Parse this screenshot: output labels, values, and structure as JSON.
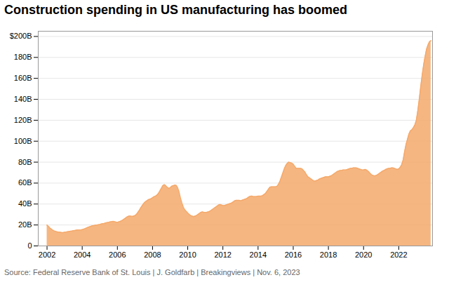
{
  "chart_data": {
    "type": "area",
    "title": "Construction spending in US manufacturing has boomed",
    "caption": "Source: Federal Reserve Bank of St. Louis | J. Goldfarb | Breakingviews | Nov. 6, 2023",
    "color": "#F5A96B",
    "grid": "y",
    "xlim": [
      2001.5,
      2023.92
    ],
    "xticks": [
      2002,
      2004,
      2006,
      2008,
      2010,
      2012,
      2014,
      2016,
      2018,
      2020,
      2022
    ],
    "ylim": [
      0,
      205
    ],
    "yticks": [
      0,
      {
        "value": 20,
        "label": "20B"
      },
      {
        "value": 40,
        "label": "40B"
      },
      {
        "value": 60,
        "label": "60B"
      },
      {
        "value": 80,
        "label": "80B"
      },
      {
        "value": 100,
        "label": "100B"
      },
      {
        "value": 120,
        "label": "120B"
      },
      {
        "value": 140,
        "label": "140B"
      },
      {
        "value": 160,
        "label": "160B"
      },
      {
        "value": 180,
        "label": "180B"
      },
      {
        "value": 200,
        "label": "$200B"
      }
    ],
    "x": [
      2002.0,
      2002.083,
      2002.167,
      2002.25,
      2002.333,
      2002.417,
      2002.5,
      2002.583,
      2002.667,
      2002.75,
      2002.833,
      2002.917,
      2003.0,
      2003.083,
      2003.167,
      2003.25,
      2003.333,
      2003.417,
      2003.5,
      2003.583,
      2003.667,
      2003.75,
      2003.833,
      2003.917,
      2004.0,
      2004.083,
      2004.167,
      2004.25,
      2004.333,
      2004.417,
      2004.5,
      2004.583,
      2004.667,
      2004.75,
      2004.833,
      2004.917,
      2005.0,
      2005.083,
      2005.167,
      2005.25,
      2005.333,
      2005.417,
      2005.5,
      2005.583,
      2005.667,
      2005.75,
      2005.833,
      2005.917,
      2006.0,
      2006.083,
      2006.167,
      2006.25,
      2006.333,
      2006.417,
      2006.5,
      2006.583,
      2006.667,
      2006.75,
      2006.833,
      2006.917,
      2007.0,
      2007.083,
      2007.167,
      2007.25,
      2007.333,
      2007.417,
      2007.5,
      2007.583,
      2007.667,
      2007.75,
      2007.833,
      2007.917,
      2008.0,
      2008.083,
      2008.167,
      2008.25,
      2008.333,
      2008.417,
      2008.5,
      2008.583,
      2008.667,
      2008.75,
      2008.833,
      2008.917,
      2009.0,
      2009.083,
      2009.167,
      2009.25,
      2009.333,
      2009.417,
      2009.5,
      2009.583,
      2009.667,
      2009.75,
      2009.833,
      2009.917,
      2010.0,
      2010.083,
      2010.167,
      2010.25,
      2010.333,
      2010.417,
      2010.5,
      2010.583,
      2010.667,
      2010.75,
      2010.833,
      2010.917,
      2011.0,
      2011.083,
      2011.167,
      2011.25,
      2011.333,
      2011.417,
      2011.5,
      2011.583,
      2011.667,
      2011.75,
      2011.833,
      2011.917,
      2012.0,
      2012.083,
      2012.167,
      2012.25,
      2012.333,
      2012.417,
      2012.5,
      2012.583,
      2012.667,
      2012.75,
      2012.833,
      2012.917,
      2013.0,
      2013.083,
      2013.167,
      2013.25,
      2013.333,
      2013.417,
      2013.5,
      2013.583,
      2013.667,
      2013.75,
      2013.833,
      2013.917,
      2014.0,
      2014.083,
      2014.167,
      2014.25,
      2014.333,
      2014.417,
      2014.5,
      2014.583,
      2014.667,
      2014.75,
      2014.833,
      2014.917,
      2015.0,
      2015.083,
      2015.167,
      2015.25,
      2015.333,
      2015.417,
      2015.5,
      2015.583,
      2015.667,
      2015.75,
      2015.833,
      2015.917,
      2016.0,
      2016.083,
      2016.167,
      2016.25,
      2016.333,
      2016.417,
      2016.5,
      2016.583,
      2016.667,
      2016.75,
      2016.833,
      2016.917,
      2017.0,
      2017.083,
      2017.167,
      2017.25,
      2017.333,
      2017.417,
      2017.5,
      2017.583,
      2017.667,
      2017.75,
      2017.833,
      2017.917,
      2018.0,
      2018.083,
      2018.167,
      2018.25,
      2018.333,
      2018.417,
      2018.5,
      2018.583,
      2018.667,
      2018.75,
      2018.833,
      2018.917,
      2019.0,
      2019.083,
      2019.167,
      2019.25,
      2019.333,
      2019.417,
      2019.5,
      2019.583,
      2019.667,
      2019.75,
      2019.833,
      2019.917,
      2020.0,
      2020.083,
      2020.167,
      2020.25,
      2020.333,
      2020.417,
      2020.5,
      2020.583,
      2020.667,
      2020.75,
      2020.833,
      2020.917,
      2021.0,
      2021.083,
      2021.167,
      2021.25,
      2021.333,
      2021.417,
      2021.5,
      2021.583,
      2021.667,
      2021.75,
      2021.833,
      2021.917,
      2022.0,
      2022.083,
      2022.167,
      2022.25,
      2022.333,
      2022.417,
      2022.5,
      2022.583,
      2022.667,
      2022.75,
      2022.833,
      2022.917,
      2023.0,
      2023.083,
      2023.167,
      2023.25,
      2023.333,
      2023.417,
      2023.5,
      2023.583,
      2023.667,
      2023.75,
      2023.833
    ],
    "values": [
      20.0,
      18.5,
      17.0,
      16.0,
      15.0,
      14.2,
      13.8,
      13.4,
      13.0,
      13.0,
      12.8,
      12.8,
      13.0,
      13.2,
      13.5,
      13.8,
      14.0,
      14.2,
      14.5,
      14.8,
      15.0,
      15.2,
      15.2,
      15.3,
      15.5,
      16.0,
      16.5,
      17.2,
      17.8,
      18.3,
      18.8,
      19.2,
      19.5,
      19.8,
      20.0,
      20.2,
      20.5,
      21.0,
      21.3,
      21.5,
      22.0,
      22.3,
      22.5,
      23.0,
      23.2,
      23.5,
      23.2,
      22.8,
      22.5,
      23.0,
      23.5,
      24.2,
      25.0,
      26.0,
      27.0,
      28.0,
      28.5,
      28.5,
      28.2,
      28.5,
      29.0,
      30.0,
      32.0,
      34.0,
      36.5,
      38.5,
      40.5,
      42.0,
      43.0,
      44.0,
      44.5,
      45.0,
      46.0,
      47.0,
      47.5,
      48.5,
      50.0,
      52.5,
      55.0,
      57.5,
      58.5,
      57.5,
      56.0,
      55.0,
      55.5,
      57.0,
      57.5,
      58.0,
      58.0,
      56.0,
      52.0,
      46.0,
      41.0,
      37.0,
      34.5,
      33.0,
      31.5,
      30.0,
      29.0,
      28.5,
      28.0,
      28.5,
      29.0,
      30.0,
      31.0,
      32.0,
      32.5,
      32.0,
      32.0,
      32.2,
      32.5,
      33.0,
      34.0,
      35.0,
      36.0,
      37.0,
      38.0,
      39.0,
      39.5,
      39.0,
      38.5,
      38.5,
      39.0,
      39.5,
      40.0,
      40.5,
      41.0,
      42.0,
      43.0,
      43.5,
      43.5,
      43.5,
      43.0,
      43.5,
      44.0,
      44.5,
      45.0,
      46.0,
      47.0,
      47.5,
      47.5,
      47.0,
      47.0,
      47.2,
      47.5,
      47.5,
      47.5,
      48.0,
      49.0,
      50.0,
      52.0,
      54.0,
      56.0,
      56.5,
      56.5,
      56.5,
      56.5,
      57.0,
      59.0,
      62.0,
      66.0,
      70.0,
      74.0,
      77.0,
      79.0,
      80.0,
      79.5,
      79.0,
      78.0,
      76.0,
      74.0,
      74.0,
      74.0,
      74.0,
      73.5,
      72.0,
      70.5,
      68.0,
      66.0,
      65.0,
      64.0,
      63.0,
      62.0,
      62.0,
      62.5,
      63.0,
      64.0,
      64.5,
      65.0,
      65.5,
      66.0,
      66.0,
      66.0,
      66.5,
      67.0,
      68.0,
      69.0,
      70.0,
      71.0,
      71.5,
      72.0,
      72.0,
      72.5,
      72.5,
      72.5,
      73.0,
      73.5,
      74.0,
      74.0,
      74.5,
      74.5,
      74.5,
      74.0,
      73.5,
      73.0,
      72.5,
      72.5,
      73.0,
      72.5,
      71.5,
      70.0,
      68.5,
      67.5,
      67.0,
      67.0,
      67.5,
      68.5,
      69.5,
      70.5,
      71.5,
      72.0,
      73.0,
      73.5,
      74.0,
      74.0,
      74.5,
      74.5,
      74.0,
      73.5,
      73.0,
      73.5,
      75.0,
      77.5,
      82.0,
      90.0,
      97.0,
      102.0,
      107.0,
      110.0,
      111.0,
      113.0,
      115.5,
      120.0,
      129.0,
      140.0,
      152.0,
      163.0,
      173.0,
      181.0,
      188.0,
      192.0,
      195.0,
      196.0
    ]
  }
}
